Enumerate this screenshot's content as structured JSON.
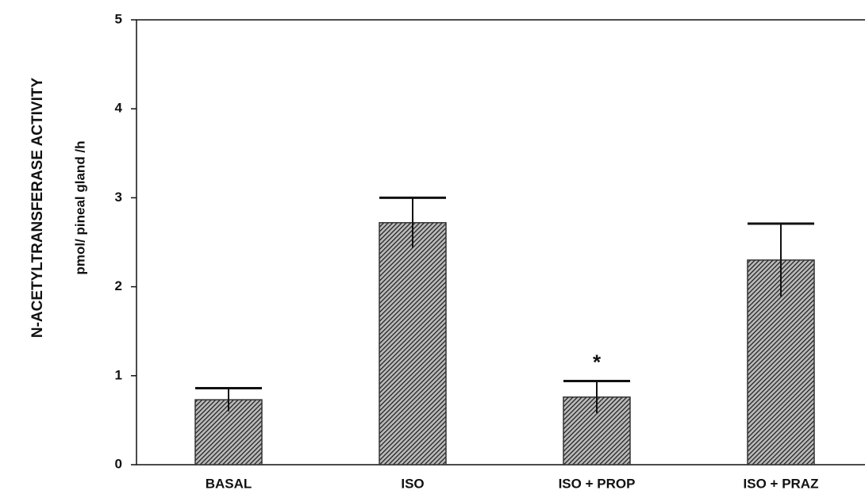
{
  "chart_data": {
    "type": "bar",
    "ylabel": "N-ACETYLTRANSFERASE ACTIVITY",
    "ylabel2": "pmol/ pineal gland /h",
    "categories": [
      "BASAL",
      "ISO",
      "ISO + PROP",
      "ISO + PRAZ"
    ],
    "values": [
      0.73,
      2.72,
      0.76,
      2.3
    ],
    "errors": [
      0.13,
      0.28,
      0.18,
      0.41
    ],
    "color": "#333333",
    "ylim": [
      0,
      5
    ],
    "yticks": [
      0,
      1,
      2,
      3,
      4,
      5
    ],
    "annotations": [
      {
        "text": "*",
        "category": "ISO + PROP"
      }
    ]
  }
}
